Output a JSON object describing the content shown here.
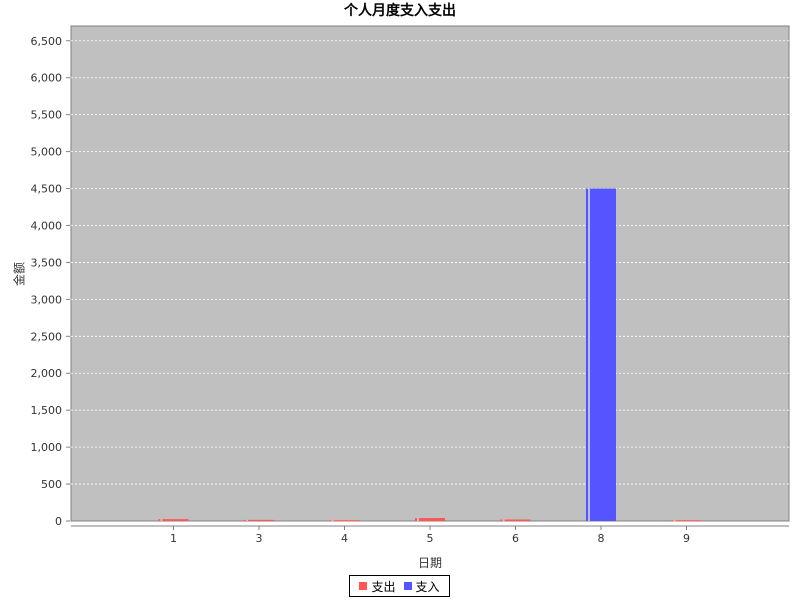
{
  "chart_data": {
    "type": "bar",
    "title": "个人月度支入支出",
    "xlabel": "日期",
    "ylabel": "金额",
    "categories": [
      "1",
      "3",
      "4",
      "5",
      "6",
      "8",
      "9"
    ],
    "series": [
      {
        "name": "支出",
        "color": "#ff5555",
        "values": [
          25,
          15,
          10,
          40,
          20,
          0,
          10
        ]
      },
      {
        "name": "支入",
        "color": "#5555ff",
        "values": [
          0,
          0,
          0,
          0,
          0,
          4500,
          0
        ]
      }
    ],
    "ylim": [
      0,
      6700
    ],
    "yticks": [
      0,
      500,
      1000,
      1500,
      2000,
      2500,
      3000,
      3500,
      4000,
      4500,
      5000,
      5500,
      6000,
      6500
    ],
    "ytick_labels": [
      "0",
      "500",
      "1,000",
      "1,500",
      "2,000",
      "2,500",
      "3,000",
      "3,500",
      "4,000",
      "4,500",
      "5,000",
      "5,500",
      "6,000",
      "6,500"
    ],
    "grid": true,
    "plot_background": "#c0c0c0",
    "legend_position": "bottom"
  }
}
